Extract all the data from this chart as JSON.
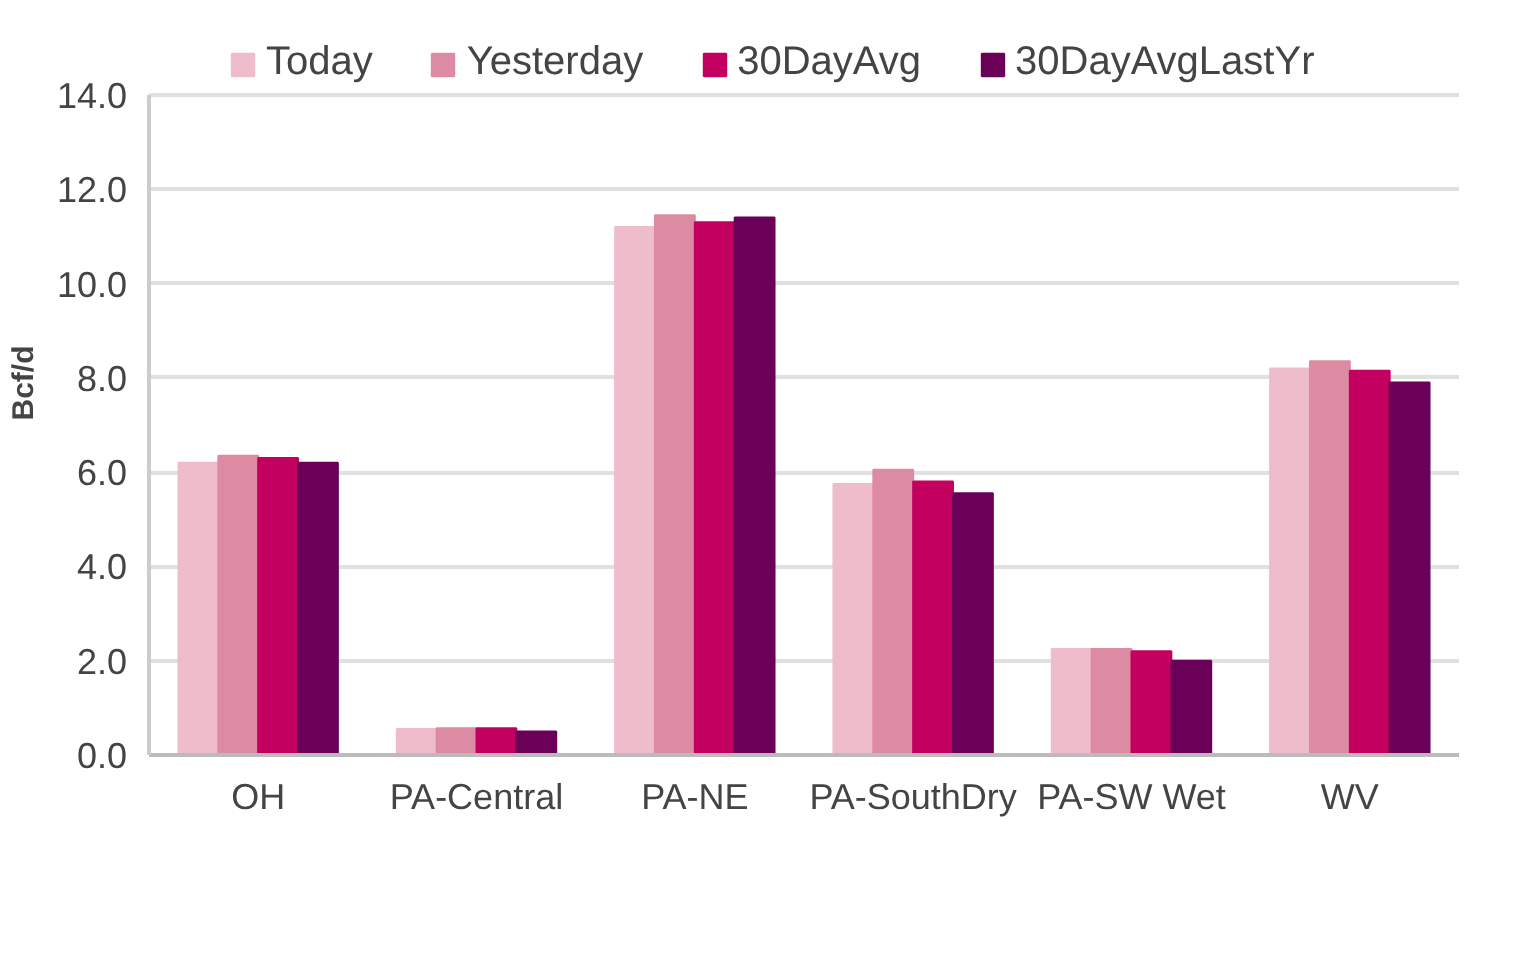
{
  "chart_data": {
    "type": "bar",
    "ylabel": "Bcf/d",
    "categories": [
      "OH",
      "PA-Central",
      "PA-NE",
      "PA-SouthDry",
      "PA-SW Wet",
      "WV"
    ],
    "series": [
      {
        "name": "Today",
        "color": "#efbccb",
        "values": [
          6.2,
          0.55,
          11.2,
          5.75,
          2.25,
          8.2
        ]
      },
      {
        "name": "Yesterday",
        "color": "#dd8aa3",
        "values": [
          6.35,
          0.57,
          11.45,
          6.05,
          2.25,
          8.35
        ]
      },
      {
        "name": "30DayAvg",
        "color": "#c30060",
        "values": [
          6.3,
          0.57,
          11.3,
          5.8,
          2.2,
          8.15
        ]
      },
      {
        "name": "30DayAvgLastYr",
        "color": "#6b0058",
        "values": [
          6.2,
          0.5,
          11.4,
          5.55,
          2.0,
          7.9
        ]
      }
    ],
    "ylim": [
      0,
      14
    ],
    "yticks": [
      {
        "value": 0,
        "label": "0.0"
      },
      {
        "value": 2,
        "label": "2.0"
      },
      {
        "value": 4,
        "label": "4.0"
      },
      {
        "value": 6,
        "label": "6.0"
      },
      {
        "value": 8,
        "label": "8.0"
      },
      {
        "value": 10,
        "label": "10.0"
      },
      {
        "value": 12,
        "label": "12.0"
      },
      {
        "value": 14,
        "label": "14.0"
      }
    ],
    "grid": "y",
    "legend": "top"
  }
}
